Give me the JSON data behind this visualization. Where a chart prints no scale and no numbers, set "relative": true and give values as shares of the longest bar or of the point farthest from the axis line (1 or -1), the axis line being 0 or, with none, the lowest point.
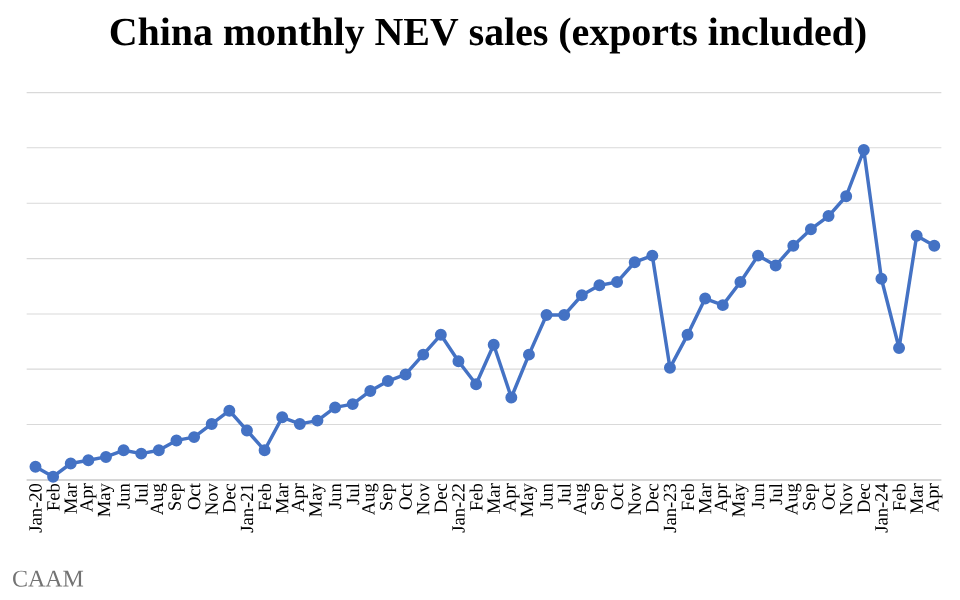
{
  "chart_data": {
    "type": "line",
    "title": "China monthly NEV sales (exports included)",
    "categories": [
      "Jan-20",
      "Feb",
      "Mar",
      "Apr",
      "May",
      "Jun",
      "Jul",
      "Aug",
      "Sep",
      "Oct",
      "Nov",
      "Dec",
      "Jan-21",
      "Feb",
      "Mar",
      "Apr",
      "May",
      "Jun",
      "Jul",
      "Aug",
      "Sep",
      "Oct",
      "Nov",
      "Dec",
      "Jan-22",
      "Feb",
      "Mar",
      "Apr",
      "May",
      "Jun",
      "Jul",
      "Aug",
      "Sep",
      "Oct",
      "Nov",
      "Dec",
      "Jan-23",
      "Feb",
      "Mar",
      "Apr",
      "May",
      "Jun",
      "Jul",
      "Aug",
      "Sep",
      "Oct",
      "Nov",
      "Dec",
      "Jan-24",
      "Feb",
      "Mar",
      "Apr"
    ],
    "values": [
      0.04,
      0.01,
      0.05,
      0.06,
      0.07,
      0.09,
      0.08,
      0.09,
      0.12,
      0.13,
      0.17,
      0.21,
      0.15,
      0.09,
      0.19,
      0.17,
      0.18,
      0.22,
      0.23,
      0.27,
      0.3,
      0.32,
      0.38,
      0.44,
      0.36,
      0.29,
      0.41,
      0.25,
      0.38,
      0.5,
      0.5,
      0.56,
      0.59,
      0.6,
      0.66,
      0.68,
      0.34,
      0.44,
      0.55,
      0.53,
      0.6,
      0.68,
      0.65,
      0.71,
      0.76,
      0.8,
      0.86,
      1,
      0.61,
      0.4,
      0.74,
      0.71
    ],
    "color": "#4472c4",
    "relative": true,
    "grid": "y",
    "marker": "circle",
    "line_style": "solid",
    "annotations": [
      "CAAM"
    ]
  }
}
